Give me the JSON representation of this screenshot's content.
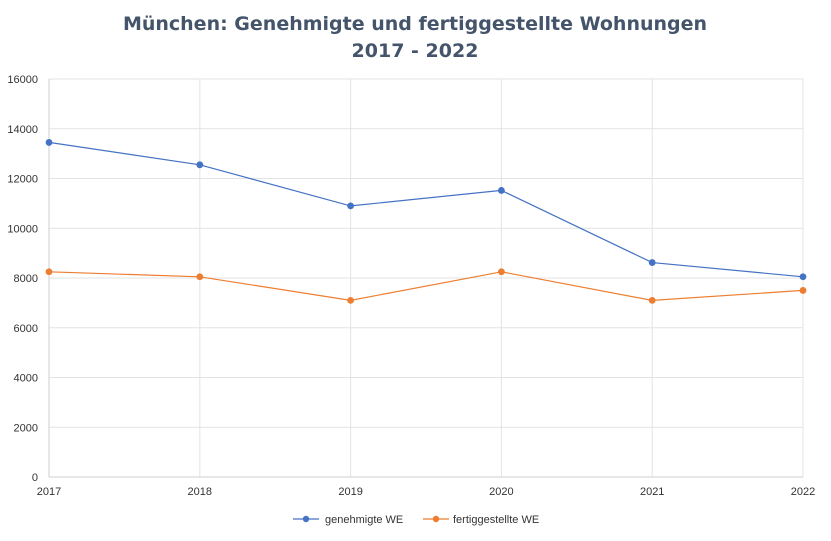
{
  "chart_data": {
    "type": "line",
    "title": "München: Genehmigte und fertiggestellte Wohnungen",
    "subtitle": "2017 - 2022",
    "xlabel": "",
    "ylabel": "",
    "x": [
      "2017",
      "2018",
      "2019",
      "2020",
      "2021",
      "2022"
    ],
    "ylim": [
      0,
      16000
    ],
    "yticks": [
      0,
      2000,
      4000,
      6000,
      8000,
      10000,
      12000,
      14000,
      16000
    ],
    "grid": true,
    "legend_position": "bottom",
    "series": [
      {
        "name": "genehmigte WE",
        "color": "#4472c4",
        "values": [
          13450,
          12550,
          10900,
          11520,
          8620,
          8050
        ]
      },
      {
        "name": "fertiggestellte WE",
        "color": "#ed7d31",
        "values": [
          8250,
          8050,
          7100,
          8250,
          7100,
          7500
        ]
      }
    ]
  }
}
